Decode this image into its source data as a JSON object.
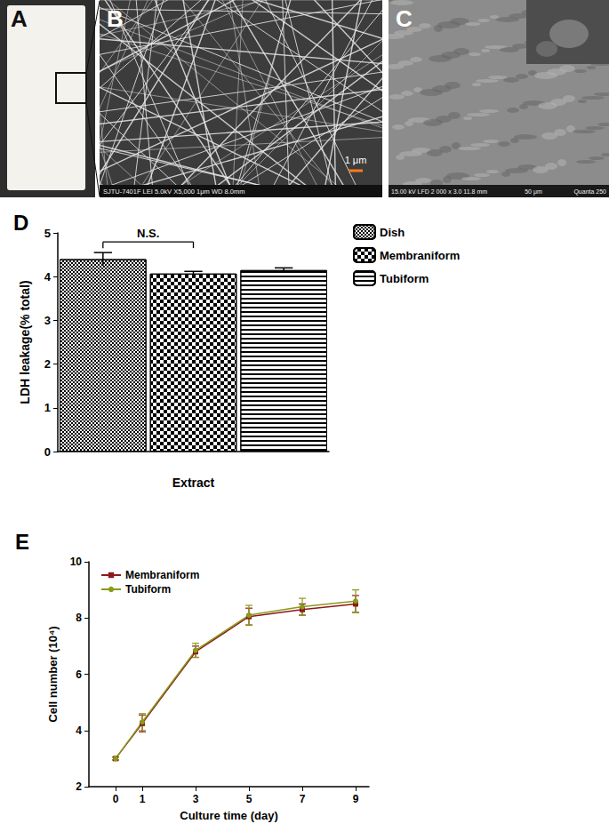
{
  "panels": [
    {
      "label": "A"
    },
    {
      "label": "B",
      "scale_bar": "1 μm",
      "info": "SJTU-7401F LEI 5.0kV X5,000 1μm WD 8.0mm"
    },
    {
      "label": "C",
      "info": "15.00 kV LFD 2 000 x 3.0 11.8 mm",
      "scale_bar": "50 μm",
      "instrument": "Quanta 250"
    }
  ],
  "chart_data": [
    {
      "type": "bar",
      "title": "D",
      "ylabel": "LDH leakage(% total)",
      "categories": [
        "Extract"
      ],
      "series": [
        {
          "name": "Dish",
          "color": "#000000",
          "values": [
            4.4
          ],
          "errors": [
            0.15
          ]
        },
        {
          "name": "Membraniform",
          "color": "#000000",
          "values": [
            4.07
          ],
          "errors": [
            0.05
          ]
        },
        {
          "name": "Tubiform",
          "color": "#000000",
          "values": [
            4.15
          ],
          "errors": [
            0.05
          ]
        }
      ],
      "ylim": [
        0,
        5
      ],
      "yticks": [
        0,
        1,
        2,
        3,
        4,
        5
      ],
      "grid": false,
      "legend": "right",
      "annotations": [
        {
          "text": "N.S.",
          "from": "Dish",
          "to": "Membraniform"
        }
      ]
    },
    {
      "type": "line",
      "title": "E",
      "xlabel": "Culture time (day)",
      "ylabel": "Cell number (10⁴)",
      "x": [
        0,
        1,
        3,
        5,
        7,
        9
      ],
      "series": [
        {
          "name": "Membraniform",
          "color": "#8b1a1a",
          "marker": "square",
          "values": [
            3.0,
            4.25,
            6.8,
            8.05,
            8.3,
            8.5
          ],
          "errors": [
            0.05,
            0.3,
            0.2,
            0.3,
            0.2,
            0.3
          ]
        },
        {
          "name": "Tubiform",
          "color": "#8a9a1a",
          "marker": "circle",
          "values": [
            3.0,
            4.3,
            6.85,
            8.1,
            8.4,
            8.6
          ],
          "errors": [
            0.05,
            0.3,
            0.25,
            0.35,
            0.3,
            0.4
          ]
        }
      ],
      "xlim": [
        -1,
        9.5
      ],
      "xticks": [
        0,
        1,
        3,
        5,
        7,
        9
      ],
      "ylim": [
        2,
        10
      ],
      "yticks": [
        2,
        4,
        6,
        8,
        10
      ],
      "grid": false,
      "legend": "upper left"
    }
  ]
}
